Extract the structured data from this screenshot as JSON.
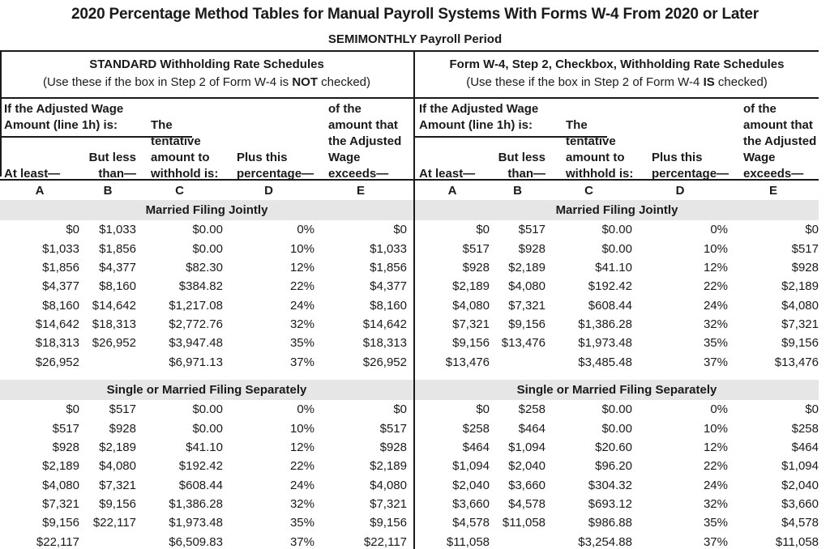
{
  "page": {
    "title": "2020 Percentage Method Tables for Manual Payroll Systems With Forms W-4 From 2020 or Later",
    "subtitle": "SEMIMONTHLY Payroll Period"
  },
  "columns": {
    "wage_line1": "If the Adjusted Wage",
    "wage_line2": "Amount (line 1h) is:",
    "at_least": "At least—",
    "but_less_1": "But less",
    "but_less_2": "than—",
    "tent_1": "The",
    "tent_2": "tentative",
    "tent_3": "amount to",
    "tent_4": "withhold is:",
    "plus_1": "Plus this",
    "plus_2": "percentage—",
    "exceeds_1": "of the",
    "exceeds_2": "amount that",
    "exceeds_3": "the Adjusted",
    "exceeds_4": "Wage",
    "exceeds_5": "exceeds—",
    "letters": [
      "A",
      "B",
      "C",
      "D",
      "E"
    ]
  },
  "colors": {
    "band_gray": "#e6e6e6",
    "rule_black": "#1a1a1a",
    "text": "#1a1a1a"
  },
  "schedules": [
    {
      "title": "STANDARD Withholding Rate Schedules",
      "use_prefix": "(Use these if the box in Step 2 of Form W-4 is ",
      "use_bold": "NOT",
      "use_suffix": " checked)",
      "sections": [
        {
          "name": "Married Filing Jointly",
          "rows": [
            [
              "$0",
              "$1,033",
              "$0.00",
              "0%",
              "$0"
            ],
            [
              "$1,033",
              "$1,856",
              "$0.00",
              "10%",
              "$1,033"
            ],
            [
              "$1,856",
              "$4,377",
              "$82.30",
              "12%",
              "$1,856"
            ],
            [
              "$4,377",
              "$8,160",
              "$384.82",
              "22%",
              "$4,377"
            ],
            [
              "$8,160",
              "$14,642",
              "$1,217.08",
              "24%",
              "$8,160"
            ],
            [
              "$14,642",
              "$18,313",
              "$2,772.76",
              "32%",
              "$14,642"
            ],
            [
              "$18,313",
              "$26,952",
              "$3,947.48",
              "35%",
              "$18,313"
            ],
            [
              "$26,952",
              "",
              "$6,971.13",
              "37%",
              "$26,952"
            ]
          ]
        },
        {
          "name": "Single or Married Filing Separately",
          "rows": [
            [
              "$0",
              "$517",
              "$0.00",
              "0%",
              "$0"
            ],
            [
              "$517",
              "$928",
              "$0.00",
              "10%",
              "$517"
            ],
            [
              "$928",
              "$2,189",
              "$41.10",
              "12%",
              "$928"
            ],
            [
              "$2,189",
              "$4,080",
              "$192.42",
              "22%",
              "$2,189"
            ],
            [
              "$4,080",
              "$7,321",
              "$608.44",
              "24%",
              "$4,080"
            ],
            [
              "$7,321",
              "$9,156",
              "$1,386.28",
              "32%",
              "$7,321"
            ],
            [
              "$9,156",
              "$22,117",
              "$1,973.48",
              "35%",
              "$9,156"
            ],
            [
              "$22,117",
              "",
              "$6,509.83",
              "37%",
              "$22,117"
            ]
          ]
        }
      ]
    },
    {
      "title": "Form W-4, Step 2, Checkbox, Withholding Rate Schedules",
      "use_prefix": "(Use these if the box in Step 2 of Form W-4 ",
      "use_bold": "IS",
      "use_suffix": " checked)",
      "sections": [
        {
          "name": "Married Filing Jointly",
          "rows": [
            [
              "$0",
              "$517",
              "$0.00",
              "0%",
              "$0"
            ],
            [
              "$517",
              "$928",
              "$0.00",
              "10%",
              "$517"
            ],
            [
              "$928",
              "$2,189",
              "$41.10",
              "12%",
              "$928"
            ],
            [
              "$2,189",
              "$4,080",
              "$192.42",
              "22%",
              "$2,189"
            ],
            [
              "$4,080",
              "$7,321",
              "$608.44",
              "24%",
              "$4,080"
            ],
            [
              "$7,321",
              "$9,156",
              "$1,386.28",
              "32%",
              "$7,321"
            ],
            [
              "$9,156",
              "$13,476",
              "$1,973.48",
              "35%",
              "$9,156"
            ],
            [
              "$13,476",
              "",
              "$3,485.48",
              "37%",
              "$13,476"
            ]
          ]
        },
        {
          "name": "Single or Married Filing Separately",
          "rows": [
            [
              "$0",
              "$258",
              "$0.00",
              "0%",
              "$0"
            ],
            [
              "$258",
              "$464",
              "$0.00",
              "10%",
              "$258"
            ],
            [
              "$464",
              "$1,094",
              "$20.60",
              "12%",
              "$464"
            ],
            [
              "$1,094",
              "$2,040",
              "$96.20",
              "22%",
              "$1,094"
            ],
            [
              "$2,040",
              "$3,660",
              "$304.32",
              "24%",
              "$2,040"
            ],
            [
              "$3,660",
              "$4,578",
              "$693.12",
              "32%",
              "$3,660"
            ],
            [
              "$4,578",
              "$11,058",
              "$986.88",
              "35%",
              "$4,578"
            ],
            [
              "$11,058",
              "",
              "$3,254.88",
              "37%",
              "$11,058"
            ]
          ]
        }
      ]
    }
  ]
}
